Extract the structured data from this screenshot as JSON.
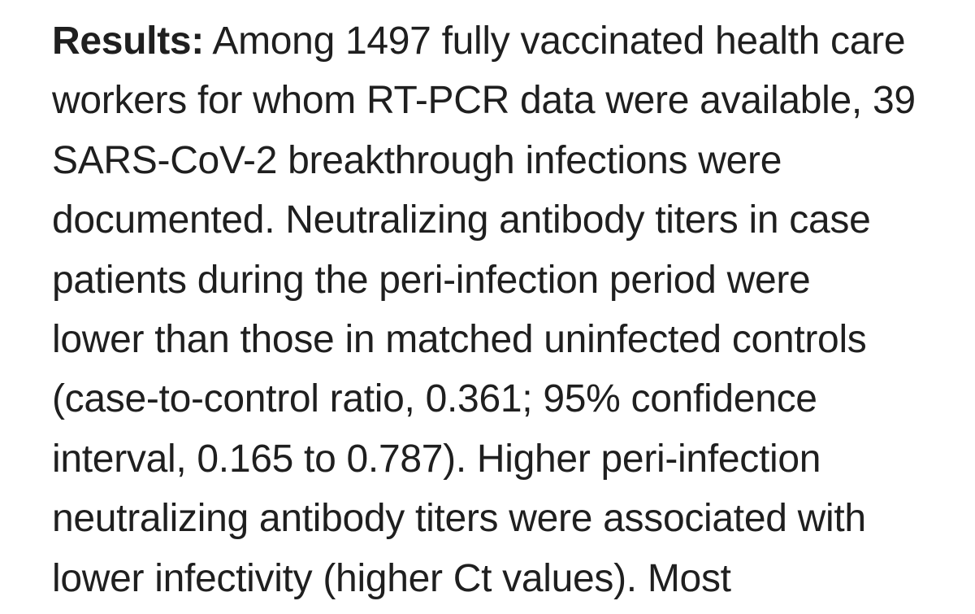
{
  "results": {
    "label": "Results:",
    "lines": [
      "Among 1497 fully vaccinated health care",
      "workers for whom RT-PCR data were available, 39",
      "SARS-CoV-2 breakthrough infections were",
      "documented. Neutralizing antibody titers in case",
      "patients during the peri-infection period were",
      "lower than those in matched uninfected controls",
      "(case-to-control ratio, 0.361; 95% confidence",
      "interval, 0.165 to 0.787). Higher peri-infection",
      "neutralizing antibody titers were associated with",
      "lower infectivity (higher Ct values). Most"
    ]
  }
}
